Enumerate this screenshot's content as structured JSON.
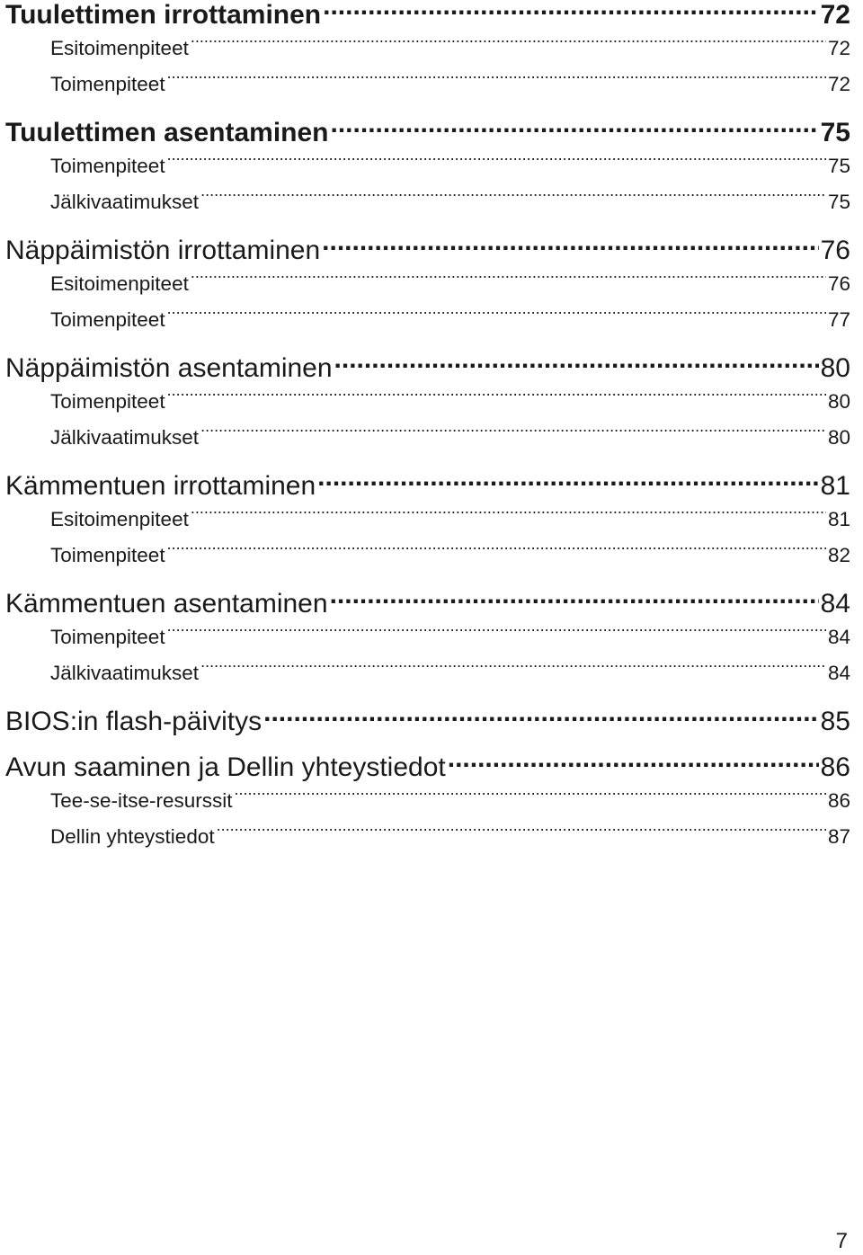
{
  "toc": [
    {
      "title": "Tuulettimen irrottaminen",
      "page": "72",
      "bold": true,
      "entries": [
        {
          "title": "Esitoimenpiteet",
          "page": "72"
        },
        {
          "title": "Toimenpiteet",
          "page": "72"
        }
      ]
    },
    {
      "title": "Tuulettimen asentaminen",
      "page": "75",
      "bold": true,
      "entries": [
        {
          "title": "Toimenpiteet",
          "page": "75"
        },
        {
          "title": "Jälkivaatimukset",
          "page": "75"
        }
      ]
    },
    {
      "title": "Näppäimistön irrottaminen",
      "page": "76",
      "bold": false,
      "entries": [
        {
          "title": "Esitoimenpiteet",
          "page": "76"
        },
        {
          "title": "Toimenpiteet",
          "page": "77"
        }
      ]
    },
    {
      "title": "Näppäimistön asentaminen",
      "page": "80",
      "bold": false,
      "entries": [
        {
          "title": "Toimenpiteet",
          "page": "80"
        },
        {
          "title": "Jälkivaatimukset",
          "page": "80"
        }
      ]
    },
    {
      "title": "Kämmentuen irrottaminen",
      "page": "81",
      "bold": false,
      "entries": [
        {
          "title": "Esitoimenpiteet",
          "page": "81"
        },
        {
          "title": "Toimenpiteet",
          "page": "82"
        }
      ]
    },
    {
      "title": "Kämmentuen asentaminen",
      "page": "84",
      "bold": false,
      "entries": [
        {
          "title": "Toimenpiteet",
          "page": "84"
        },
        {
          "title": "Jälkivaatimukset",
          "page": "84"
        }
      ]
    },
    {
      "title": "BIOS:in flash-päivitys",
      "page": "85",
      "bold": false,
      "entries": []
    },
    {
      "title": "Avun saaminen ja Dellin yhteystiedot",
      "page": "86",
      "bold": false,
      "entries": [
        {
          "title": "Tee-se-itse-resurssit",
          "page": "86"
        },
        {
          "title": "Dellin yhteystiedot",
          "page": "87"
        }
      ]
    }
  ],
  "page_number": "7"
}
